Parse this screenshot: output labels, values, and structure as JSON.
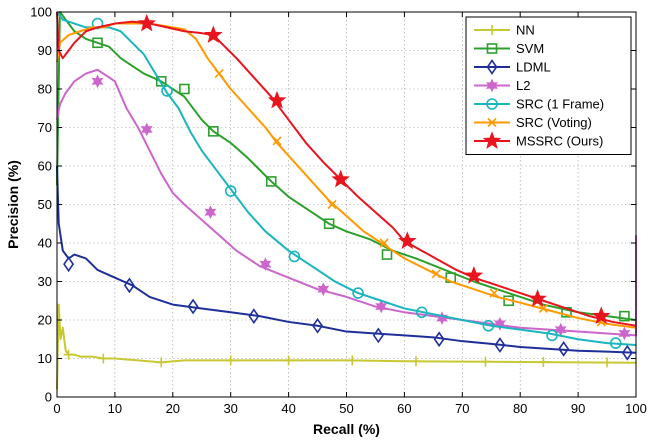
{
  "chart_data": {
    "type": "line",
    "title": "",
    "xlabel": "Recall (%)",
    "ylabel": "Precision (%)",
    "xlim": [
      0,
      100
    ],
    "ylim": [
      0,
      100
    ],
    "xticks": [
      0,
      10,
      20,
      30,
      40,
      50,
      60,
      70,
      80,
      90,
      100
    ],
    "yticks": [
      0,
      10,
      20,
      30,
      40,
      50,
      60,
      70,
      80,
      90,
      100
    ],
    "grid": true,
    "legend_position": "top-right",
    "series": [
      {
        "name": "NN",
        "color": "#c8c832",
        "marker": "plus",
        "points": [
          [
            0,
            2
          ],
          [
            0.3,
            24
          ],
          [
            0.6,
            15
          ],
          [
            1,
            18
          ],
          [
            1.5,
            12
          ],
          [
            2,
            11
          ],
          [
            3,
            11
          ],
          [
            4,
            10.5
          ],
          [
            6,
            10.5
          ],
          [
            8,
            10
          ],
          [
            10,
            10
          ],
          [
            14,
            9.5
          ],
          [
            18,
            9
          ],
          [
            22,
            9.5
          ],
          [
            26,
            9.5
          ],
          [
            30,
            9.5
          ],
          [
            40,
            9.5
          ],
          [
            50,
            9.5
          ],
          [
            60,
            9.3
          ],
          [
            70,
            9.2
          ],
          [
            80,
            9.1
          ],
          [
            90,
            9
          ],
          [
            100,
            8.9
          ]
        ],
        "markers": [
          [
            2,
            11
          ],
          [
            8,
            10
          ],
          [
            18,
            9
          ],
          [
            30,
            9.5
          ],
          [
            40,
            9.5
          ],
          [
            51,
            9.5
          ],
          [
            62,
            9.3
          ],
          [
            74,
            9.2
          ],
          [
            84,
            9.1
          ],
          [
            95,
            9
          ]
        ]
      },
      {
        "name": "SVM",
        "color": "#2ca02c",
        "marker": "square",
        "points": [
          [
            0,
            55
          ],
          [
            0.5,
            100
          ],
          [
            1.5,
            98
          ],
          [
            3,
            95
          ],
          [
            5,
            93
          ],
          [
            7,
            92
          ],
          [
            9,
            91
          ],
          [
            11,
            88
          ],
          [
            13,
            86
          ],
          [
            15,
            84
          ],
          [
            18,
            82
          ],
          [
            20,
            80
          ],
          [
            22,
            78
          ],
          [
            25,
            72
          ],
          [
            27,
            69
          ],
          [
            30,
            66
          ],
          [
            33,
            62
          ],
          [
            37,
            56
          ],
          [
            40,
            52
          ],
          [
            44,
            48
          ],
          [
            47,
            45
          ],
          [
            50,
            43
          ],
          [
            54,
            41
          ],
          [
            58,
            38
          ],
          [
            62,
            36
          ],
          [
            67,
            33
          ],
          [
            72,
            30
          ],
          [
            78,
            27
          ],
          [
            84,
            24
          ],
          [
            90,
            22
          ],
          [
            95,
            21
          ],
          [
            100,
            20
          ]
        ],
        "markers": [
          [
            7,
            92
          ],
          [
            18,
            82
          ],
          [
            22,
            80
          ],
          [
            27,
            69
          ],
          [
            37,
            56
          ],
          [
            47,
            45
          ],
          [
            57,
            37
          ],
          [
            68,
            31
          ],
          [
            78,
            25
          ],
          [
            88,
            22
          ],
          [
            98,
            21
          ]
        ]
      },
      {
        "name": "LDML",
        "color": "#1f2f9a",
        "marker": "diamond",
        "points": [
          [
            0,
            60
          ],
          [
            0.3,
            45
          ],
          [
            1,
            38
          ],
          [
            2,
            36
          ],
          [
            3,
            37
          ],
          [
            5,
            36
          ],
          [
            7,
            33
          ],
          [
            10,
            31
          ],
          [
            13,
            29
          ],
          [
            16,
            26
          ],
          [
            20,
            24
          ],
          [
            25,
            23
          ],
          [
            30,
            22
          ],
          [
            35,
            21
          ],
          [
            40,
            19.5
          ],
          [
            45,
            18.5
          ],
          [
            50,
            17
          ],
          [
            55,
            16.5
          ],
          [
            60,
            16
          ],
          [
            65,
            15.5
          ],
          [
            70,
            14.5
          ],
          [
            75,
            13.8
          ],
          [
            80,
            13
          ],
          [
            85,
            12.5
          ],
          [
            90,
            12
          ],
          [
            95,
            11.8
          ],
          [
            100,
            11.5
          ]
        ],
        "markers": [
          [
            2,
            34.5
          ],
          [
            12.5,
            29
          ],
          [
            23.5,
            23.5
          ],
          [
            34,
            21
          ],
          [
            45,
            18.5
          ],
          [
            55.5,
            16
          ],
          [
            66,
            15
          ],
          [
            76.5,
            13.5
          ],
          [
            87.5,
            12.5
          ],
          [
            98.5,
            11.5
          ]
        ]
      },
      {
        "name": "L2",
        "color": "#cc66cc",
        "marker": "star6",
        "points": [
          [
            0,
            72
          ],
          [
            0.5,
            76
          ],
          [
            1.5,
            79
          ],
          [
            3,
            82
          ],
          [
            5,
            84
          ],
          [
            7,
            85
          ],
          [
            9,
            83
          ],
          [
            10,
            82
          ],
          [
            12,
            75
          ],
          [
            14,
            70
          ],
          [
            16,
            64
          ],
          [
            18,
            58
          ],
          [
            20,
            53
          ],
          [
            22,
            50
          ],
          [
            25,
            46
          ],
          [
            28,
            42
          ],
          [
            31,
            38
          ],
          [
            35,
            34
          ],
          [
            40,
            31
          ],
          [
            45,
            28
          ],
          [
            50,
            26
          ],
          [
            55,
            23.5
          ],
          [
            60,
            22
          ],
          [
            65,
            21
          ],
          [
            70,
            20
          ],
          [
            75,
            19
          ],
          [
            80,
            18
          ],
          [
            85,
            17.5
          ],
          [
            90,
            17
          ],
          [
            95,
            16.5
          ],
          [
            100,
            16
          ],
          [
            100,
            42
          ]
        ],
        "markers": [
          [
            7,
            82
          ],
          [
            15.5,
            69.5
          ],
          [
            26.5,
            48
          ],
          [
            36,
            34.5
          ],
          [
            46,
            28
          ],
          [
            56,
            23.5
          ],
          [
            66.5,
            20.5
          ],
          [
            76.5,
            19
          ],
          [
            87,
            17.5
          ],
          [
            98,
            16.5
          ]
        ]
      },
      {
        "name": "SRC (1 Frame)",
        "color": "#1ab5be",
        "marker": "circle",
        "points": [
          [
            0,
            100
          ],
          [
            1,
            98
          ],
          [
            3,
            97
          ],
          [
            5,
            96
          ],
          [
            7,
            96
          ],
          [
            9,
            96
          ],
          [
            11,
            95
          ],
          [
            13,
            92
          ],
          [
            15,
            89
          ],
          [
            17,
            84
          ],
          [
            19,
            79
          ],
          [
            21,
            75
          ],
          [
            23,
            69
          ],
          [
            25,
            64
          ],
          [
            28,
            58
          ],
          [
            30,
            54
          ],
          [
            33,
            48
          ],
          [
            36,
            43
          ],
          [
            40,
            38
          ],
          [
            44,
            34
          ],
          [
            48,
            30
          ],
          [
            52,
            27
          ],
          [
            56,
            25
          ],
          [
            60,
            23
          ],
          [
            65,
            21.5
          ],
          [
            70,
            20
          ],
          [
            75,
            18.5
          ],
          [
            80,
            17.5
          ],
          [
            85,
            16.5
          ],
          [
            90,
            15
          ],
          [
            95,
            14
          ],
          [
            100,
            13.5
          ]
        ],
        "markers": [
          [
            7,
            97
          ],
          [
            19,
            79.5
          ],
          [
            30,
            53.5
          ],
          [
            41,
            36.5
          ],
          [
            52,
            27
          ],
          [
            63,
            22
          ],
          [
            74.5,
            18.5
          ],
          [
            85.5,
            16
          ],
          [
            96.5,
            14
          ]
        ]
      },
      {
        "name": "SRC (Voting)",
        "color": "#ff9900",
        "marker": "x",
        "points": [
          [
            0,
            87
          ],
          [
            0.5,
            92
          ],
          [
            2,
            94
          ],
          [
            4,
            95
          ],
          [
            6,
            96
          ],
          [
            8,
            96
          ],
          [
            10,
            97
          ],
          [
            13,
            97
          ],
          [
            16,
            97
          ],
          [
            18,
            96.5
          ],
          [
            20,
            96
          ],
          [
            22,
            95.5
          ],
          [
            24,
            93
          ],
          [
            26,
            88
          ],
          [
            28,
            84
          ],
          [
            30,
            80
          ],
          [
            33,
            75
          ],
          [
            36,
            70
          ],
          [
            38,
            66
          ],
          [
            41,
            61
          ],
          [
            44,
            56
          ],
          [
            47,
            51
          ],
          [
            50,
            47
          ],
          [
            53,
            43
          ],
          [
            56,
            40
          ],
          [
            60,
            36
          ],
          [
            64,
            33
          ],
          [
            68,
            30
          ],
          [
            72,
            28
          ],
          [
            76,
            26
          ],
          [
            80,
            24.5
          ],
          [
            85,
            22.5
          ],
          [
            90,
            20.5
          ],
          [
            95,
            19
          ],
          [
            100,
            18
          ]
        ],
        "markers": [
          [
            28,
            84
          ],
          [
            38,
            66.5
          ],
          [
            47.5,
            50
          ],
          [
            56.5,
            40
          ],
          [
            65.5,
            32
          ],
          [
            75.5,
            27
          ],
          [
            84,
            23
          ],
          [
            94,
            19.5
          ]
        ]
      },
      {
        "name": "MSSRC (Ours)",
        "color": "#e8141e",
        "marker": "pentagram",
        "points": [
          [
            0,
            100
          ],
          [
            0.3,
            90
          ],
          [
            1,
            88
          ],
          [
            2,
            90
          ],
          [
            3,
            92
          ],
          [
            5,
            95
          ],
          [
            7,
            96
          ],
          [
            10,
            97
          ],
          [
            13,
            97.5
          ],
          [
            16,
            97
          ],
          [
            19,
            96
          ],
          [
            22,
            95
          ],
          [
            25,
            94.5
          ],
          [
            27,
            94
          ],
          [
            29,
            91
          ],
          [
            31,
            88
          ],
          [
            34,
            83
          ],
          [
            37,
            78
          ],
          [
            40,
            72
          ],
          [
            43,
            66
          ],
          [
            46,
            61
          ],
          [
            49,
            56.5
          ],
          [
            52,
            52
          ],
          [
            55,
            48
          ],
          [
            58,
            44
          ],
          [
            60,
            40.5
          ],
          [
            63,
            38
          ],
          [
            66,
            35.5
          ],
          [
            69,
            33
          ],
          [
            72,
            31
          ],
          [
            76,
            29
          ],
          [
            80,
            27
          ],
          [
            84,
            25
          ],
          [
            88,
            23
          ],
          [
            92,
            21
          ],
          [
            96,
            19.5
          ],
          [
            100,
            18.5
          ]
        ],
        "markers": [
          [
            15.5,
            97
          ],
          [
            27,
            94
          ],
          [
            38,
            77
          ],
          [
            49,
            56.5
          ],
          [
            60.5,
            40.5
          ],
          [
            72,
            31.5
          ],
          [
            83,
            25.5
          ],
          [
            94,
            21
          ]
        ]
      }
    ]
  }
}
